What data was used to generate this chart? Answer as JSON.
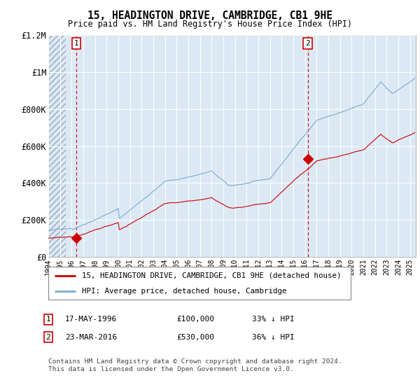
{
  "title": "15, HEADINGTON DRIVE, CAMBRIDGE, CB1 9HE",
  "subtitle": "Price paid vs. HM Land Registry's House Price Index (HPI)",
  "sale1_date": "17-MAY-1996",
  "sale1_price": 100000,
  "sale1_label": "33% ↓ HPI",
  "sale2_date": "23-MAR-2016",
  "sale2_price": 530000,
  "sale2_label": "36% ↓ HPI",
  "legend_label1": "15, HEADINGTON DRIVE, CAMBRIDGE, CB1 9HE (detached house)",
  "legend_label2": "HPI: Average price, detached house, Cambridge",
  "footer": "Contains HM Land Registry data © Crown copyright and database right 2024.\nThis data is licensed under the Open Government Licence v3.0.",
  "hpi_color": "#7aaad0",
  "price_color": "#cc0000",
  "background_plot": "#dce9f5",
  "ylim": [
    0,
    1200000
  ],
  "xlim_start": 1994.0,
  "xlim_end": 2025.5,
  "sale1_x": 1996.38,
  "sale2_x": 2016.23,
  "hatch_end": 1995.5
}
